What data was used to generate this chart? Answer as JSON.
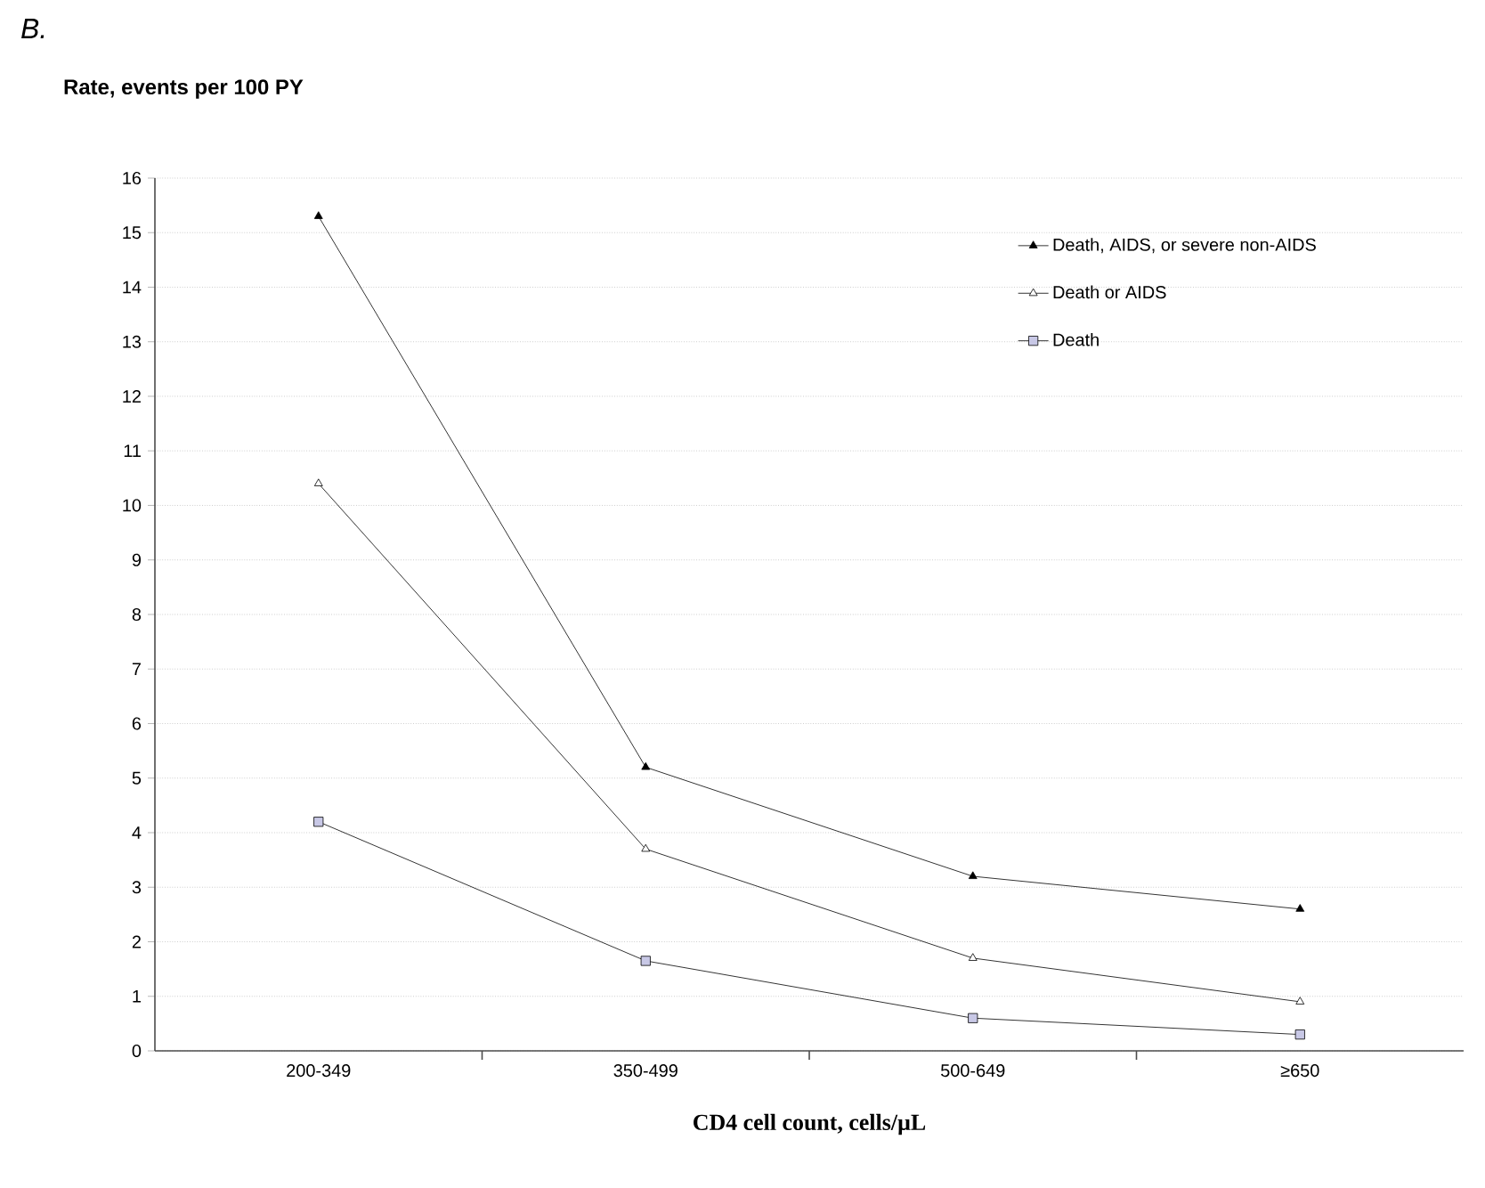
{
  "chart_data": {
    "type": "line",
    "categories": [
      "200-349",
      "350-499",
      "500-649",
      "≥650"
    ],
    "series": [
      {
        "name": "Death, AIDS, or severe non-AIDS",
        "color": "#000000",
        "marker": "triangle",
        "values": [
          15.3,
          5.2,
          3.2,
          2.6
        ]
      },
      {
        "name": "Death or AIDS",
        "color": "#ffffff",
        "marker": "triangle",
        "values": [
          10.4,
          3.7,
          1.7,
          0.9
        ]
      },
      {
        "name": "Death",
        "color": "#c8c8e6",
        "marker": "square",
        "values": [
          4.2,
          1.65,
          0.6,
          0.3
        ]
      }
    ],
    "ylabel": "Rate, events per 100 PY",
    "xlabel": "CD4 cell count, cells/µL",
    "ylim": [
      0,
      16
    ],
    "yticks": [
      0,
      1,
      2,
      3,
      4,
      5,
      6,
      7,
      8,
      9,
      10,
      11,
      12,
      13,
      14,
      15,
      16
    ],
    "grid": "y",
    "legend": "right",
    "line_style": "solid",
    "annotations": [
      "B."
    ]
  }
}
